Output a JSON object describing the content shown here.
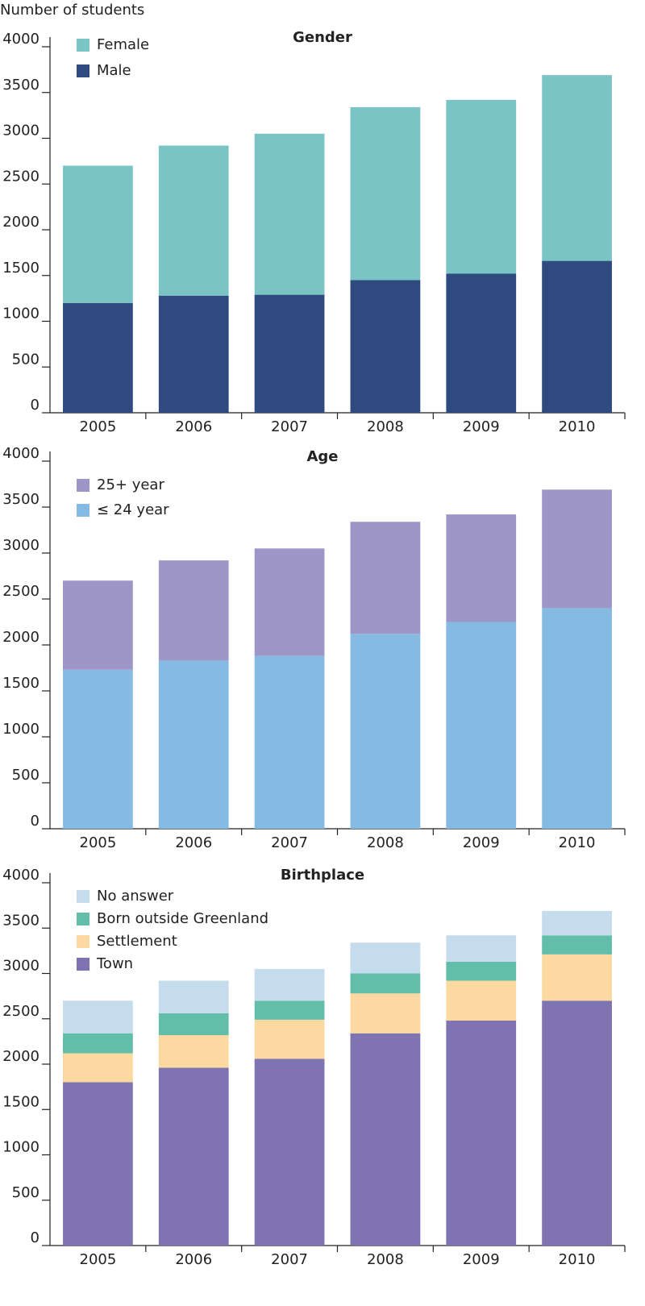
{
  "chart_data": [
    {
      "type": "stacked-bar",
      "title": "Gender",
      "ylabel": "Number of students",
      "categories": [
        "2005",
        "2006",
        "2007",
        "2008",
        "2009",
        "2010"
      ],
      "series": [
        {
          "name": "Male",
          "color": "#2e4a7e",
          "values": [
            1200,
            1280,
            1290,
            1450,
            1520,
            1660
          ]
        },
        {
          "name": "Female",
          "color": "#7bc4c6",
          "values": [
            1500,
            1640,
            1760,
            1890,
            1900,
            2030
          ]
        }
      ],
      "ylim": [
        0,
        4000
      ],
      "yticks": [
        0,
        500,
        1000,
        1500,
        2000,
        2500,
        3000,
        3500,
        4000
      ],
      "legend": "upper left"
    },
    {
      "type": "stacked-bar",
      "title": "Age",
      "categories": [
        "2005",
        "2006",
        "2007",
        "2008",
        "2009",
        "2010"
      ],
      "series": [
        {
          "name": "≤ 24 year",
          "color": "#85bbe3",
          "values": [
            1730,
            1830,
            1880,
            2120,
            2250,
            2400
          ]
        },
        {
          "name": "25+ year",
          "color": "#9f96c8",
          "values": [
            970,
            1090,
            1170,
            1220,
            1170,
            1290
          ]
        }
      ],
      "ylim": [
        0,
        4000
      ],
      "yticks": [
        0,
        500,
        1000,
        1500,
        2000,
        2500,
        3000,
        3500,
        4000
      ],
      "legend": "upper left"
    },
    {
      "type": "stacked-bar",
      "title": "Birthplace",
      "categories": [
        "2005",
        "2006",
        "2007",
        "2008",
        "2009",
        "2010"
      ],
      "series": [
        {
          "name": "Town",
          "color": "#7f73b2",
          "values": [
            1800,
            1960,
            2060,
            2340,
            2480,
            2700
          ]
        },
        {
          "name": "Settlement",
          "color": "#fcd9a0",
          "values": [
            320,
            360,
            430,
            440,
            440,
            510
          ]
        },
        {
          "name": "Born outside Greenland",
          "color": "#62bea8",
          "values": [
            220,
            240,
            210,
            220,
            210,
            210
          ]
        },
        {
          "name": "No answer",
          "color": "#c5dcec",
          "values": [
            360,
            360,
            350,
            340,
            290,
            270
          ]
        }
      ],
      "ylim": [
        0,
        4000
      ],
      "yticks": [
        0,
        500,
        1000,
        1500,
        2000,
        2500,
        3000,
        3500,
        4000
      ],
      "legend": "upper left"
    }
  ]
}
